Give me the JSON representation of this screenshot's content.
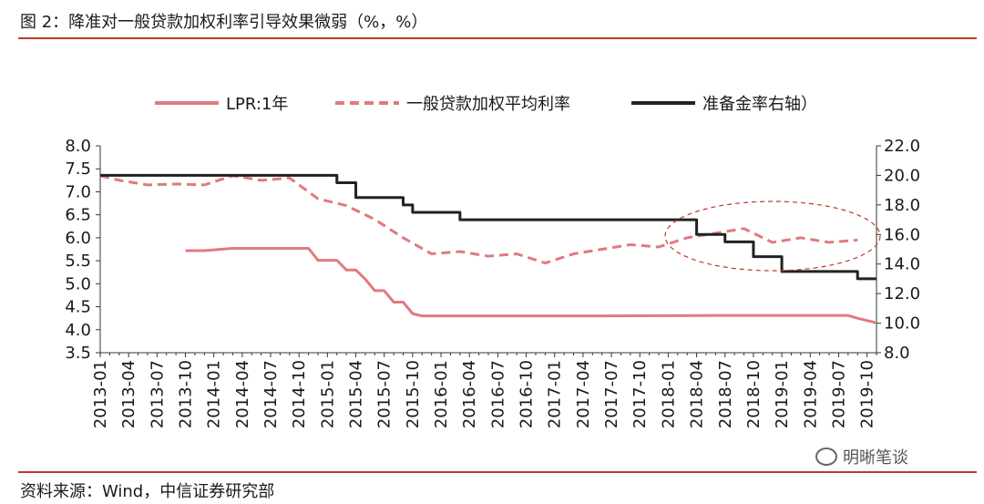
{
  "header": {
    "title": "图 2：降准对一般贷款加权利率引导效果微弱（%，%）"
  },
  "footer": {
    "source": "资料来源：Wind，中信证券研究部",
    "watermark": "明晰笔谈"
  },
  "chart_data": {
    "type": "line",
    "title": "",
    "xlabel": "",
    "ylabel": "",
    "left_axis": {
      "ylim": [
        3.5,
        8.0
      ],
      "ticks": [
        "8.0",
        "7.5",
        "7.0",
        "6.5",
        "6.0",
        "5.5",
        "5.0",
        "4.5",
        "4.0",
        "3.5"
      ]
    },
    "right_axis": {
      "ylim": [
        8.0,
        22.0
      ],
      "ticks": [
        "22.0",
        "20.0",
        "18.0",
        "16.0",
        "14.0",
        "12.0",
        "10.0",
        "8.0"
      ]
    },
    "x_ticks": [
      "2013-01",
      "2013-04",
      "2013-07",
      "2013-10",
      "2014-01",
      "2014-04",
      "2014-07",
      "2014-10",
      "2015-01",
      "2015-04",
      "2015-07",
      "2015-10",
      "2016-01",
      "2016-04",
      "2016-07",
      "2016-10",
      "2017-01",
      "2017-04",
      "2017-07",
      "2017-10",
      "2018-01",
      "2018-04",
      "2018-07",
      "2018-10",
      "2019-01",
      "2019-04",
      "2019-07",
      "2019-10"
    ],
    "legend_position": "top",
    "grid": false,
    "series": [
      {
        "name": "LPR:1年",
        "axis": "left",
        "style": "solid",
        "color": "#e07a7f",
        "x": [
          "2013-10",
          "2013-12",
          "2014-03",
          "2014-06",
          "2014-09",
          "2014-11",
          "2014-12",
          "2015-02",
          "2015-03",
          "2015-04",
          "2015-05",
          "2015-06",
          "2015-07",
          "2015-08",
          "2015-09",
          "2015-10",
          "2015-11",
          "2016-06",
          "2017-06",
          "2018-06",
          "2019-03",
          "2019-08",
          "2019-09",
          "2019-10",
          "2019-11"
        ],
        "values": [
          5.72,
          5.72,
          5.77,
          5.77,
          5.77,
          5.77,
          5.51,
          5.51,
          5.3,
          5.3,
          5.1,
          4.85,
          4.85,
          4.6,
          4.6,
          4.35,
          4.3,
          4.3,
          4.3,
          4.31,
          4.31,
          4.31,
          4.25,
          4.2,
          4.15
        ]
      },
      {
        "name": "一般贷款加权平均利率",
        "axis": "left",
        "style": "dashed",
        "color": "#e07a7f",
        "x": [
          "2013-01",
          "2013-03",
          "2013-06",
          "2013-09",
          "2013-12",
          "2014-03",
          "2014-06",
          "2014-09",
          "2014-12",
          "2015-03",
          "2015-06",
          "2015-09",
          "2015-12",
          "2016-03",
          "2016-06",
          "2016-09",
          "2016-12",
          "2017-03",
          "2017-06",
          "2017-09",
          "2017-12",
          "2018-03",
          "2018-06",
          "2018-09",
          "2018-12",
          "2019-03",
          "2019-06",
          "2019-09"
        ],
        "values": [
          7.35,
          7.25,
          7.15,
          7.17,
          7.15,
          7.35,
          7.25,
          7.3,
          6.85,
          6.7,
          6.4,
          6.0,
          5.65,
          5.7,
          5.6,
          5.65,
          5.45,
          5.65,
          5.75,
          5.85,
          5.8,
          6.0,
          6.1,
          6.2,
          5.9,
          6.0,
          5.9,
          5.95
        ]
      },
      {
        "name": "准备金率右轴）",
        "axis": "right",
        "style": "solid",
        "color": "#222222",
        "x": [
          "2013-01",
          "2015-01",
          "2015-02",
          "2015-03",
          "2015-04",
          "2015-05",
          "2015-06",
          "2015-07",
          "2015-08",
          "2015-09",
          "2015-10",
          "2015-11",
          "2016-02",
          "2016-03",
          "2016-04",
          "2018-03",
          "2018-04",
          "2018-05",
          "2018-06",
          "2018-07",
          "2018-08",
          "2018-09",
          "2018-10",
          "2018-11",
          "2019-01",
          "2019-02",
          "2019-08",
          "2019-09",
          "2019-10",
          "2019-11"
        ],
        "values": [
          20,
          20,
          19.5,
          19.5,
          18.5,
          18.5,
          18.5,
          18.5,
          18.5,
          18,
          17.5,
          17.5,
          17.5,
          17,
          17,
          17,
          16,
          16,
          16,
          15.5,
          15.5,
          15.5,
          14.5,
          14.5,
          13.5,
          13.5,
          13.5,
          13,
          13,
          13
        ]
      }
    ]
  }
}
